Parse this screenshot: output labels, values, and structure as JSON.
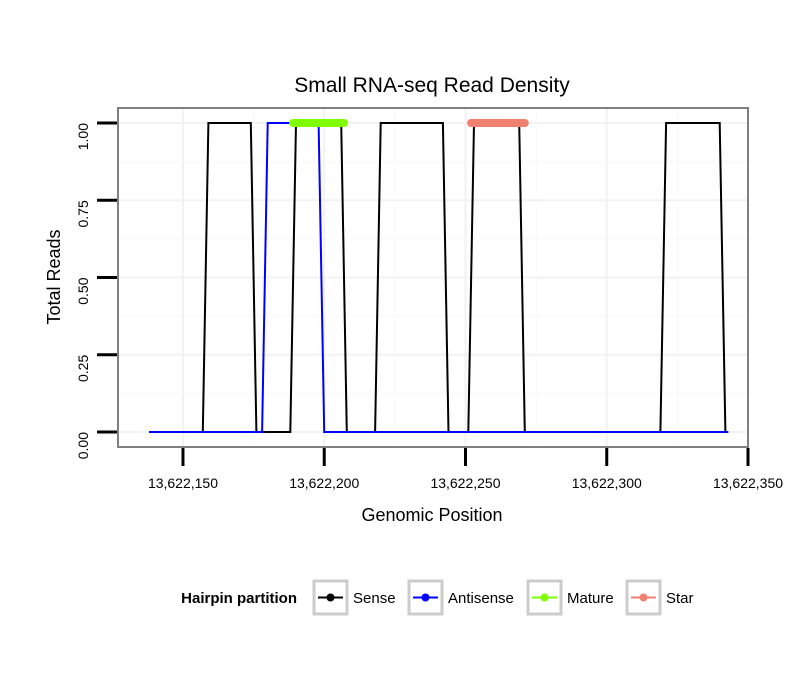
{
  "chart_data": {
    "type": "line",
    "title": "Small RNA-seq Read Density",
    "xlabel": "Genomic Position",
    "ylabel": "Total Reads",
    "xlim": [
      13622127,
      13622350
    ],
    "ylim": [
      0,
      1
    ],
    "x_ticks": [
      {
        "value": 13622150,
        "label": "13,622,150"
      },
      {
        "value": 13622200,
        "label": "13,622,200"
      },
      {
        "value": 13622250,
        "label": "13,622,250"
      },
      {
        "value": 13622300,
        "label": "13,622,300"
      },
      {
        "value": 13622350,
        "label": "13,622,350"
      }
    ],
    "y_ticks": [
      {
        "value": 0,
        "label": "0.00"
      },
      {
        "value": 0.25,
        "label": "0.25"
      },
      {
        "value": 0.5,
        "label": "0.50"
      },
      {
        "value": 0.75,
        "label": "0.75"
      },
      {
        "value": 1,
        "label": "1.00"
      }
    ],
    "grid": true,
    "legend": {
      "title": "Hairpin partition",
      "position": "bottom",
      "entries": [
        "Sense",
        "Antisense",
        "Mature",
        "Star"
      ]
    },
    "series": [
      {
        "name": "Sense",
        "color": "#000000",
        "x": [
          13622138,
          13622157,
          13622159,
          13622174,
          13622176,
          13622188,
          13622190,
          13622206,
          13622208,
          13622218,
          13622220,
          13622242,
          13622244,
          13622251,
          13622253,
          13622269,
          13622271,
          13622319,
          13622321,
          13622340,
          13622342,
          13622343
        ],
        "y": [
          0,
          0,
          1,
          1,
          0,
          0,
          1,
          1,
          0,
          0,
          1,
          1,
          0,
          0,
          1,
          1,
          0,
          0,
          1,
          1,
          0,
          0
        ]
      },
      {
        "name": "Antisense",
        "color": "#0000ff",
        "x": [
          13622138,
          13622178,
          13622180,
          13622198,
          13622200,
          13622343
        ],
        "y": [
          0,
          0,
          1,
          1,
          0,
          0
        ]
      },
      {
        "name": "Mature",
        "color": "#7fff00",
        "x": [
          13622189,
          13622207
        ],
        "y": [
          1,
          1
        ]
      },
      {
        "name": "Star",
        "color": "#f08070",
        "x": [
          13622252,
          13622271
        ],
        "y": [
          1,
          1
        ]
      }
    ]
  }
}
